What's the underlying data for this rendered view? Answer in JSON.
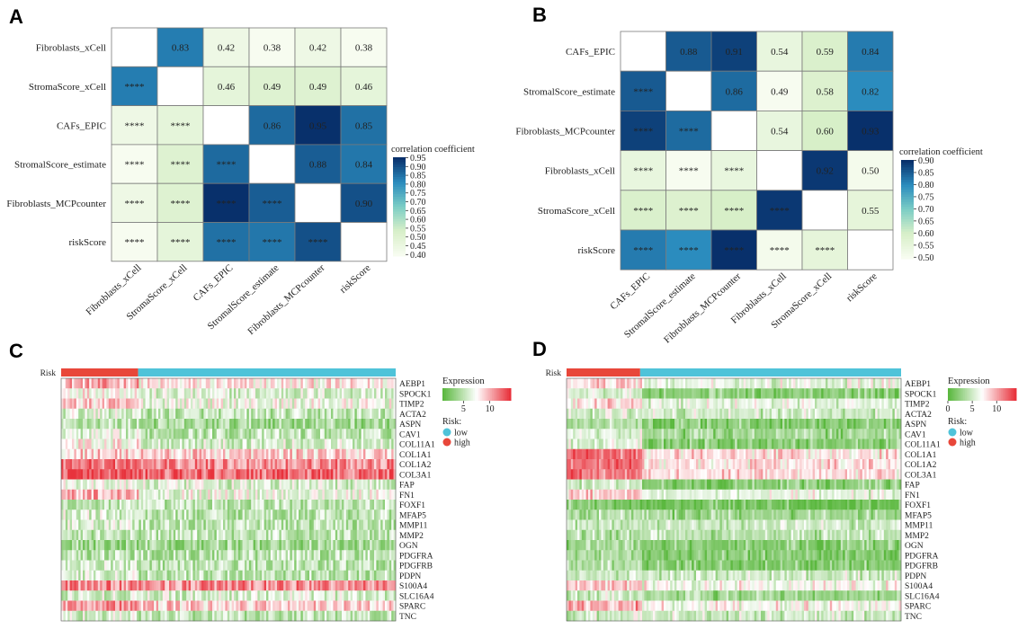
{
  "panels": {
    "a": "A",
    "b": "B",
    "c": "C",
    "d": "D"
  },
  "chart_data": [
    {
      "type": "heatmap",
      "panel": "A",
      "kind": "triangular-correlation",
      "labels": [
        "Fibroblasts_xCell",
        "StromaScore_xCell",
        "CAFs_EPIC",
        "StromalScore_estimate",
        "Fibroblasts_MCPcounter",
        "riskScore"
      ],
      "matrix": [
        [
          null,
          0.83,
          0.42,
          0.38,
          0.42,
          0.38
        ],
        [
          "****",
          null,
          0.46,
          0.49,
          0.49,
          0.46
        ],
        [
          "****",
          "****",
          null,
          0.86,
          0.95,
          0.85
        ],
        [
          "****",
          "****",
          "****",
          null,
          0.88,
          0.84
        ],
        [
          "****",
          "****",
          "****",
          "****",
          null,
          0.9
        ],
        [
          "****",
          "****",
          "****",
          "****",
          "****",
          null
        ]
      ],
      "lower_values": [
        [
          null,
          null,
          null,
          null,
          null,
          null
        ],
        [
          0.83,
          null,
          null,
          null,
          null,
          null
        ],
        [
          0.42,
          0.46,
          null,
          null,
          null,
          null
        ],
        [
          0.38,
          0.49,
          0.86,
          null,
          null,
          null
        ],
        [
          0.42,
          0.49,
          0.95,
          0.88,
          null,
          null
        ],
        [
          0.38,
          0.46,
          0.85,
          0.84,
          0.9,
          null
        ]
      ],
      "legend": {
        "title": "correlation coefficient",
        "range": [
          0.38,
          0.95
        ],
        "ticks": [
          "0.95",
          "0.90",
          "0.85",
          "0.80",
          "0.75",
          "0.70",
          "0.65",
          "0.60",
          "0.55",
          "0.50",
          "0.45",
          "0.40"
        ]
      }
    },
    {
      "type": "heatmap",
      "panel": "B",
      "kind": "triangular-correlation",
      "labels": [
        "CAFs_EPIC",
        "StromalScore_estimate",
        "Fibroblasts_MCPcounter",
        "Fibroblasts_xCell",
        "StromaScore_xCell",
        "riskScore"
      ],
      "matrix": [
        [
          null,
          0.88,
          0.91,
          0.54,
          0.59,
          0.84
        ],
        [
          "****",
          null,
          0.86,
          0.49,
          0.58,
          0.82
        ],
        [
          "****",
          "****",
          null,
          0.54,
          0.6,
          0.93
        ],
        [
          "****",
          "****",
          "****",
          null,
          0.92,
          0.5
        ],
        [
          "****",
          "****",
          "****",
          "****",
          null,
          0.55
        ],
        [
          "****",
          "****",
          "****",
          "****",
          "****",
          null
        ]
      ],
      "lower_values": [
        [
          null,
          null,
          null,
          null,
          null,
          null
        ],
        [
          0.88,
          null,
          null,
          null,
          null,
          null
        ],
        [
          0.91,
          0.86,
          null,
          null,
          null,
          null
        ],
        [
          0.54,
          0.49,
          0.54,
          null,
          null,
          null
        ],
        [
          0.59,
          0.58,
          0.6,
          0.92,
          null,
          null
        ],
        [
          0.84,
          0.82,
          0.93,
          0.5,
          0.55,
          null
        ]
      ],
      "legend": {
        "title": "correlation coefficient",
        "range": [
          0.49,
          0.93
        ],
        "ticks": [
          "0.90",
          "0.85",
          "0.80",
          "0.75",
          "0.70",
          "0.65",
          "0.60",
          "0.55",
          "0.50"
        ]
      }
    },
    {
      "type": "heatmap",
      "panel": "C",
      "kind": "expression",
      "annotation_label": "Risk",
      "high_fraction": 0.23,
      "genes": [
        "AEBP1",
        "SPOCK1",
        "TIMP2",
        "ACTA2",
        "ASPN",
        "CAV1",
        "COL11A1",
        "COL1A1",
        "COL1A2",
        "COL3A1",
        "FAP",
        "FN1",
        "FOXF1",
        "MFAP5",
        "MMP11",
        "MMP2",
        "OGN",
        "PDGFRA",
        "PDGFRB",
        "PDPN",
        "S100A4",
        "SLC16A4",
        "SPARC",
        "TNC"
      ],
      "mean_expression_high": [
        10,
        8,
        9,
        6,
        5,
        6,
        8,
        9,
        12,
        13,
        7,
        10,
        5,
        6,
        6,
        5,
        4,
        5,
        6,
        6,
        11,
        6,
        11,
        6
      ],
      "mean_expression_low": [
        8,
        6,
        7,
        5,
        4,
        5,
        6,
        9,
        11,
        12,
        6,
        7,
        5,
        5,
        5,
        5,
        4,
        5,
        5,
        5,
        11,
        6,
        9,
        5
      ],
      "legend": {
        "title": "Expression",
        "ticks": [
          "5",
          "10"
        ],
        "range": [
          1,
          14
        ],
        "risk_title": "Risk:",
        "low": "low",
        "high": "high"
      }
    },
    {
      "type": "heatmap",
      "panel": "D",
      "kind": "expression",
      "annotation_label": "Risk",
      "high_fraction": 0.22,
      "genes": [
        "AEBP1",
        "SPOCK1",
        "TIMP2",
        "ACTA2",
        "ASPN",
        "CAV1",
        "COL11A1",
        "COL1A1",
        "COL1A2",
        "COL3A1",
        "FAP",
        "FN1",
        "FOXF1",
        "MFAP5",
        "MMP11",
        "MMP2",
        "OGN",
        "PDGFRA",
        "PDGFRB",
        "PDPN",
        "S100A4",
        "SLC16A4",
        "SPARC",
        "TNC"
      ],
      "mean_expression_high": [
        8,
        5,
        8,
        5,
        4,
        6,
        6,
        12,
        12,
        12,
        5,
        9,
        2,
        4,
        5,
        4,
        3,
        4,
        4,
        5,
        9,
        5,
        10,
        5
      ],
      "mean_expression_low": [
        6,
        2,
        6,
        5,
        2,
        3,
        2,
        8,
        8,
        8,
        2,
        6,
        1,
        3,
        5,
        4,
        2,
        2,
        2,
        5,
        7,
        3,
        7,
        5
      ],
      "legend": {
        "title": "Expression",
        "ticks": [
          "0",
          "5",
          "10"
        ],
        "range": [
          0,
          14
        ],
        "risk_title": "Risk:",
        "low": "low",
        "high": "high"
      }
    }
  ],
  "colors": {
    "risk_high": "#e8473a",
    "risk_low": "#4fc3d9",
    "corr_low": "#f7fcf0",
    "corr_mid": "#7bcdc5",
    "corr_high": "#08306b",
    "expr_low": "#5bb83f",
    "expr_mid": "#ffffff",
    "expr_high": "#e8323c"
  }
}
